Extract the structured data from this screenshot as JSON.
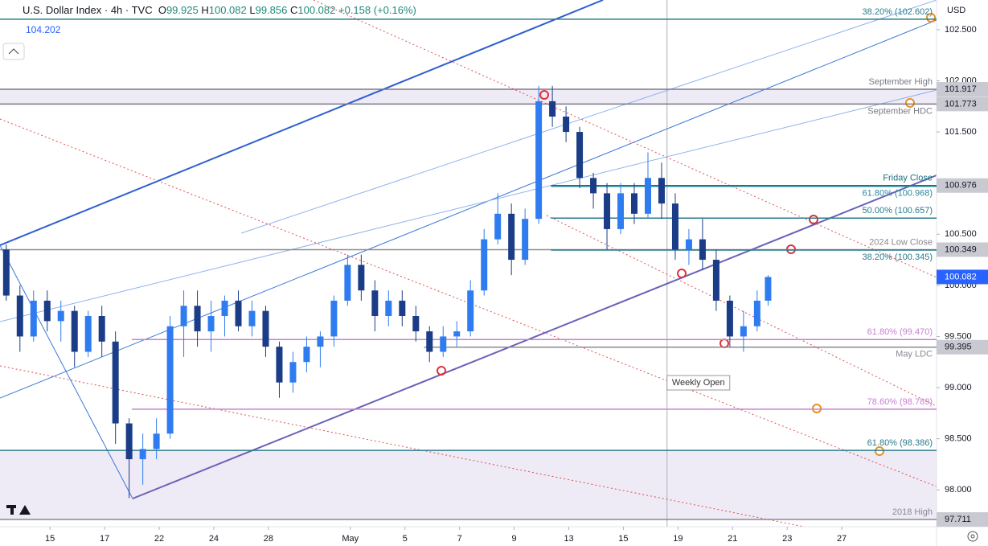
{
  "chart_data": {
    "type": "candlestick",
    "title": "U.S. Dollar Index · 4h · TVC",
    "ohlc": [
      {
        "label": "O",
        "value": 99.925
      },
      {
        "label": "H",
        "value": 100.082
      },
      {
        "label": "L",
        "value": 99.856
      },
      {
        "label": "C",
        "value": 100.082
      }
    ],
    "change": "+0.158 (+0.16%)",
    "secondary": 104.202,
    "currency": "USD",
    "up_color": "#2f7cf0",
    "down_color": "#1b3c86",
    "xlim": [
      -1.83,
      32.47
    ],
    "ylim": [
      97.64,
      102.79
    ],
    "xticks": [
      {
        "value": 0,
        "label": "15"
      },
      {
        "value": 2,
        "label": "17"
      },
      {
        "value": 4,
        "label": "22"
      },
      {
        "value": 6,
        "label": "24"
      },
      {
        "value": 8,
        "label": "28"
      },
      {
        "value": 11,
        "label": "May"
      },
      {
        "value": 13,
        "label": "5"
      },
      {
        "value": 15,
        "label": "7"
      },
      {
        "value": 17,
        "label": "9"
      },
      {
        "value": 19,
        "label": "13"
      },
      {
        "value": 21,
        "label": "15"
      },
      {
        "value": 23,
        "label": "19"
      },
      {
        "value": 25,
        "label": "21"
      },
      {
        "value": 27,
        "label": "23"
      },
      {
        "value": 29,
        "label": "27"
      }
    ],
    "yticks": [
      {
        "value": 102.5,
        "label": "102.500"
      },
      {
        "value": 102.0,
        "label": "102.000"
      },
      {
        "value": 101.5,
        "label": "101.500"
      },
      {
        "value": 100.5,
        "label": "100.500"
      },
      {
        "value": 100.0,
        "label": "100.000"
      },
      {
        "value": 99.5,
        "label": "99.500"
      },
      {
        "value": 99.0,
        "label": "99.000"
      },
      {
        "value": 98.5,
        "label": "98.500"
      },
      {
        "value": 98.0,
        "label": "98.000"
      }
    ],
    "x": [
      -1.6,
      -1.1,
      -0.6,
      -0.1,
      0.4,
      0.9,
      1.4,
      1.9,
      2.4,
      2.9,
      3.4,
      3.9,
      4.4,
      4.9,
      5.4,
      5.9,
      6.4,
      6.9,
      7.4,
      7.9,
      8.4,
      8.9,
      9.4,
      9.9,
      10.4,
      10.9,
      11.4,
      11.9,
      12.4,
      12.9,
      13.4,
      13.9,
      14.4,
      14.9,
      15.4,
      15.9,
      16.4,
      16.9,
      17.4,
      17.9,
      18.4,
      18.9,
      19.4,
      19.9,
      20.4,
      20.9,
      21.4,
      21.9,
      22.4,
      22.9,
      23.4,
      23.9,
      24.4,
      24.9,
      25.4,
      25.9,
      26.3
    ],
    "open": [
      100.35,
      99.9,
      99.5,
      99.85,
      99.65,
      99.75,
      99.35,
      99.7,
      99.45,
      98.65,
      98.3,
      98.4,
      98.55,
      99.6,
      99.8,
      99.55,
      99.7,
      99.85,
      99.6,
      99.75,
      99.4,
      99.05,
      99.25,
      99.4,
      99.5,
      99.85,
      100.2,
      99.95,
      99.7,
      99.85,
      99.7,
      99.55,
      99.35,
      99.5,
      99.55,
      99.95,
      100.45,
      100.7,
      100.25,
      100.65,
      101.8,
      101.65,
      101.5,
      101.05,
      100.9,
      100.55,
      100.9,
      100.7,
      101.05,
      100.8,
      100.35,
      100.45,
      100.25,
      99.85,
      99.5,
      99.6,
      99.85
    ],
    "high": [
      100.4,
      100.0,
      99.95,
      99.95,
      99.85,
      99.8,
      99.75,
      99.8,
      99.55,
      98.7,
      98.55,
      98.7,
      99.7,
      99.95,
      99.95,
      99.85,
      99.9,
      99.95,
      99.85,
      99.8,
      99.45,
      99.35,
      99.5,
      99.55,
      99.9,
      100.3,
      100.3,
      100.05,
      99.95,
      99.95,
      99.8,
      99.6,
      99.6,
      99.65,
      100.05,
      100.55,
      100.9,
      100.8,
      100.75,
      101.95,
      101.95,
      101.75,
      101.55,
      101.1,
      101.0,
      101.0,
      101.0,
      101.3,
      101.2,
      100.9,
      100.55,
      100.65,
      100.35,
      99.9,
      99.75,
      99.95,
      100.1
    ],
    "low": [
      99.85,
      99.35,
      99.45,
      99.55,
      99.45,
      99.2,
      99.3,
      99.3,
      98.45,
      97.92,
      98.05,
      98.3,
      98.5,
      99.3,
      99.4,
      99.35,
      99.5,
      99.55,
      99.5,
      99.3,
      98.9,
      98.95,
      99.15,
      99.2,
      99.4,
      99.8,
      99.85,
      99.55,
      99.6,
      99.6,
      99.45,
      99.25,
      99.3,
      99.4,
      99.5,
      99.9,
      100.4,
      100.1,
      100.2,
      100.6,
      101.55,
      101.4,
      100.95,
      100.75,
      100.35,
      100.5,
      100.6,
      100.65,
      100.65,
      100.25,
      100.2,
      100.15,
      99.75,
      99.4,
      99.35,
      99.55,
      99.8
    ],
    "close": [
      99.9,
      99.5,
      99.85,
      99.65,
      99.75,
      99.35,
      99.7,
      99.45,
      98.65,
      98.3,
      98.4,
      98.55,
      99.6,
      99.8,
      99.55,
      99.7,
      99.85,
      99.6,
      99.75,
      99.4,
      99.05,
      99.25,
      99.4,
      99.5,
      99.85,
      100.2,
      99.95,
      99.7,
      99.85,
      99.7,
      99.55,
      99.35,
      99.5,
      99.55,
      99.95,
      100.45,
      100.7,
      100.25,
      100.65,
      101.8,
      101.65,
      101.5,
      101.05,
      100.9,
      100.55,
      100.9,
      100.7,
      101.05,
      100.8,
      100.35,
      100.45,
      100.25,
      99.85,
      99.5,
      99.6,
      99.85,
      100.082
    ],
    "levels": [
      {
        "value": 102.602,
        "label": "38.20% (102.602)",
        "color": "#2b7b8c",
        "x_from": -1.83
      },
      {
        "value": 101.917,
        "label": "September High",
        "color": "#7a7a86",
        "x_from": -1.83
      },
      {
        "value": 101.773,
        "label": "September HDC",
        "color": "#7a7a86",
        "x_from": -1.83
      },
      {
        "value": 100.976,
        "label": "Friday Close",
        "color": "#1f6e80",
        "x_from": 18.35
      },
      {
        "value": 100.968,
        "label": "61.80% (100.968)",
        "color": "#2b8a9c",
        "x_from": 18.35
      },
      {
        "value": 100.657,
        "label": "50.00% (100.657)",
        "color": "#2b7b8c",
        "x_from": 18.35
      },
      {
        "value": 100.349,
        "label": "2024 Low Close",
        "color": "#8a8a92",
        "x_from": -1.83
      },
      {
        "value": 100.345,
        "label": "38.20% (100.345)",
        "color": "#2b7b8c",
        "x_from": 18.35
      },
      {
        "value": 99.47,
        "label": "61.80% (99.470)",
        "color": "#c77fd3",
        "x_from": 3.0
      },
      {
        "value": 99.395,
        "label": "May LDC",
        "color": "#8a8a92",
        "x_from": 13.7
      },
      {
        "value": 98.789,
        "label": "78.60% (98.789)",
        "color": "#c77fd3",
        "x_from": 3.0
      },
      {
        "value": 98.386,
        "label": "61.80% (98.386)",
        "color": "#2b7b8c",
        "x_from": -1.83
      },
      {
        "value": 97.711,
        "label": "2018 High",
        "color": "#8a8a92",
        "x_from": -1.83
      }
    ],
    "shaded_zones": [
      [
        101.773,
        101.917
      ],
      [
        97.711,
        98.386
      ]
    ],
    "price_tags": [
      101.917,
      101.773,
      100.976,
      100.349,
      99.395,
      97.711
    ],
    "last_price": 100.082,
    "weekly_open": {
      "label": "Weekly Open",
      "x": 22.6
    }
  }
}
